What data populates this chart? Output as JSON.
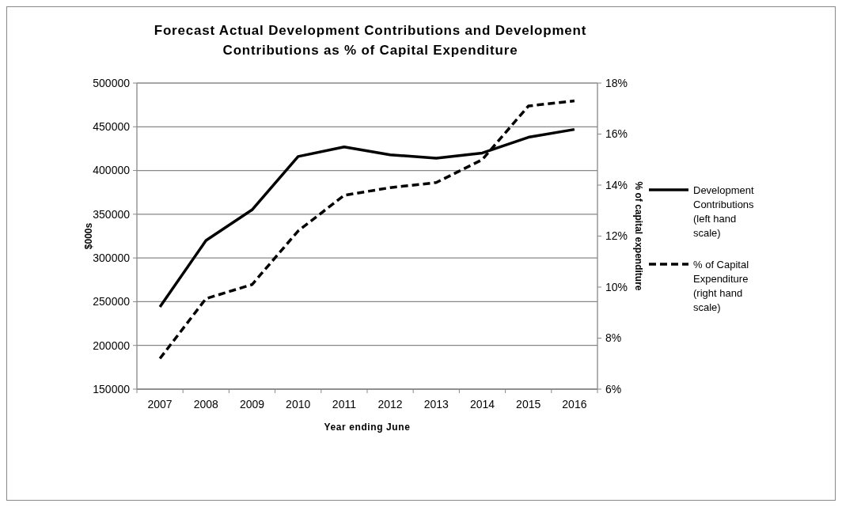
{
  "chart_data": {
    "type": "line",
    "title": "Forecast Actual Development Contributions and Development Contributions as % of Capital Expenditure",
    "xlabel": "Year ending June",
    "ylabel": "$000s",
    "y2label": "% of capital expenditure",
    "categories": [
      "2007",
      "2008",
      "2009",
      "2010",
      "2011",
      "2012",
      "2013",
      "2014",
      "2015",
      "2016"
    ],
    "series": [
      {
        "name": "Development Contributions (left hand scale)",
        "color": "#000000",
        "line_style": "solid",
        "values": [
          244000,
          320000,
          355000,
          416000,
          427000,
          418000,
          414000,
          420000,
          438000,
          447000
        ]
      },
      {
        "name": "% of Capital Expenditure (right hand scale)",
        "color": "#000000",
        "line_style": "dashed",
        "axis": "y2",
        "values": [
          7.2,
          9.55,
          10.1,
          12.2,
          13.6,
          13.9,
          14.1,
          15.0,
          17.1,
          17.3
        ]
      }
    ],
    "ylim": [
      150000,
      500000
    ],
    "yticks": [
      150000,
      200000,
      250000,
      300000,
      350000,
      400000,
      450000,
      500000
    ],
    "y2lim": [
      6,
      18
    ],
    "y2ticks": [
      {
        "value": 6,
        "label": "6%"
      },
      {
        "value": 8,
        "label": "8%"
      },
      {
        "value": 10,
        "label": "10%"
      },
      {
        "value": 12,
        "label": "12%"
      },
      {
        "value": 14,
        "label": "14%"
      },
      {
        "value": 16,
        "label": "16%"
      },
      {
        "value": 18,
        "label": "18%"
      }
    ],
    "grid": "y",
    "legend": "right"
  }
}
